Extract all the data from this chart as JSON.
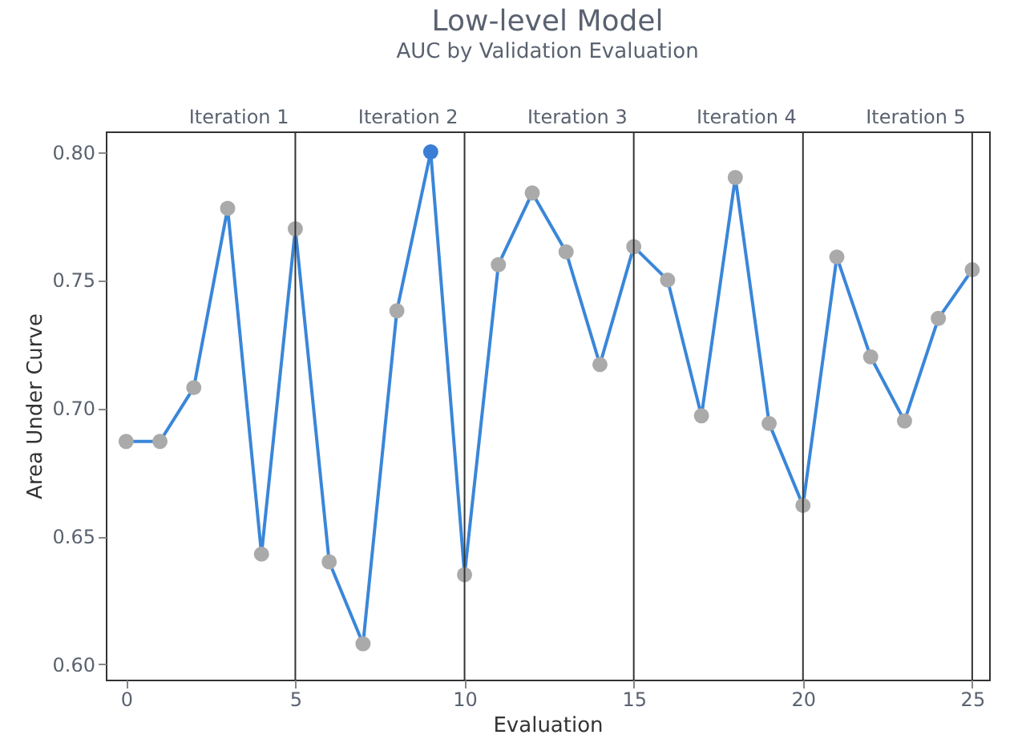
{
  "chart_data": {
    "type": "line",
    "title": "Low-level Model",
    "subtitle": "AUC by Validation Evaluation",
    "xlabel": "Evaluation",
    "ylabel": "Area Under Curve",
    "x": [
      0,
      1,
      2,
      3,
      4,
      5,
      6,
      7,
      8,
      9,
      10,
      11,
      12,
      13,
      14,
      15,
      16,
      17,
      18,
      19,
      20,
      21,
      22,
      23,
      24,
      25
    ],
    "series": [
      {
        "color": "#3a86d9",
        "values": [
          0.687,
          0.687,
          0.708,
          0.778,
          0.643,
          0.77,
          0.64,
          0.608,
          0.738,
          0.8,
          0.635,
          0.756,
          0.784,
          0.761,
          0.717,
          0.763,
          0.75,
          0.697,
          0.79,
          0.694,
          0.662,
          0.759,
          0.72,
          0.695,
          0.735,
          0.754
        ],
        "colors": [
          "#aaaaaa",
          "#aaaaaa",
          "#aaaaaa",
          "#aaaaaa",
          "#aaaaaa",
          "#aaaaaa",
          "#aaaaaa",
          "#aaaaaa",
          "#aaaaaa",
          "#3a7fd5",
          "#aaaaaa",
          "#aaaaaa",
          "#aaaaaa",
          "#aaaaaa",
          "#aaaaaa",
          "#aaaaaa",
          "#aaaaaa",
          "#aaaaaa",
          "#aaaaaa",
          "#aaaaaa",
          "#aaaaaa",
          "#aaaaaa",
          "#aaaaaa",
          "#aaaaaa",
          "#aaaaaa",
          "#aaaaaa"
        ]
      }
    ],
    "xlim": [
      -0.6,
      25.5
    ],
    "xticks": [
      0,
      5,
      10,
      15,
      20,
      25
    ],
    "ylim": [
      0.594,
      0.808
    ],
    "yticks": [
      {
        "value": 0.6,
        "label": "0.60"
      },
      0.65,
      {
        "value": 0.7,
        "label": "0.70"
      },
      0.75,
      {
        "value": 0.8,
        "label": "0.80"
      }
    ],
    "ref_lines": [
      {
        "axis": "x",
        "value": 5,
        "label": "Iteration 1",
        "color": "#333333"
      },
      {
        "axis": "x",
        "value": 10,
        "label": "Iteration 2",
        "color": "#333333"
      },
      {
        "axis": "x",
        "value": 15,
        "label": "Iteration 3",
        "color": "#333333"
      },
      {
        "axis": "x",
        "value": 20,
        "label": "Iteration 4",
        "color": "#333333"
      },
      {
        "axis": "x",
        "value": 25,
        "label": "Iteration 5",
        "color": "#333333"
      }
    ],
    "marker": "circle",
    "line_style": "solid",
    "grid": false
  }
}
